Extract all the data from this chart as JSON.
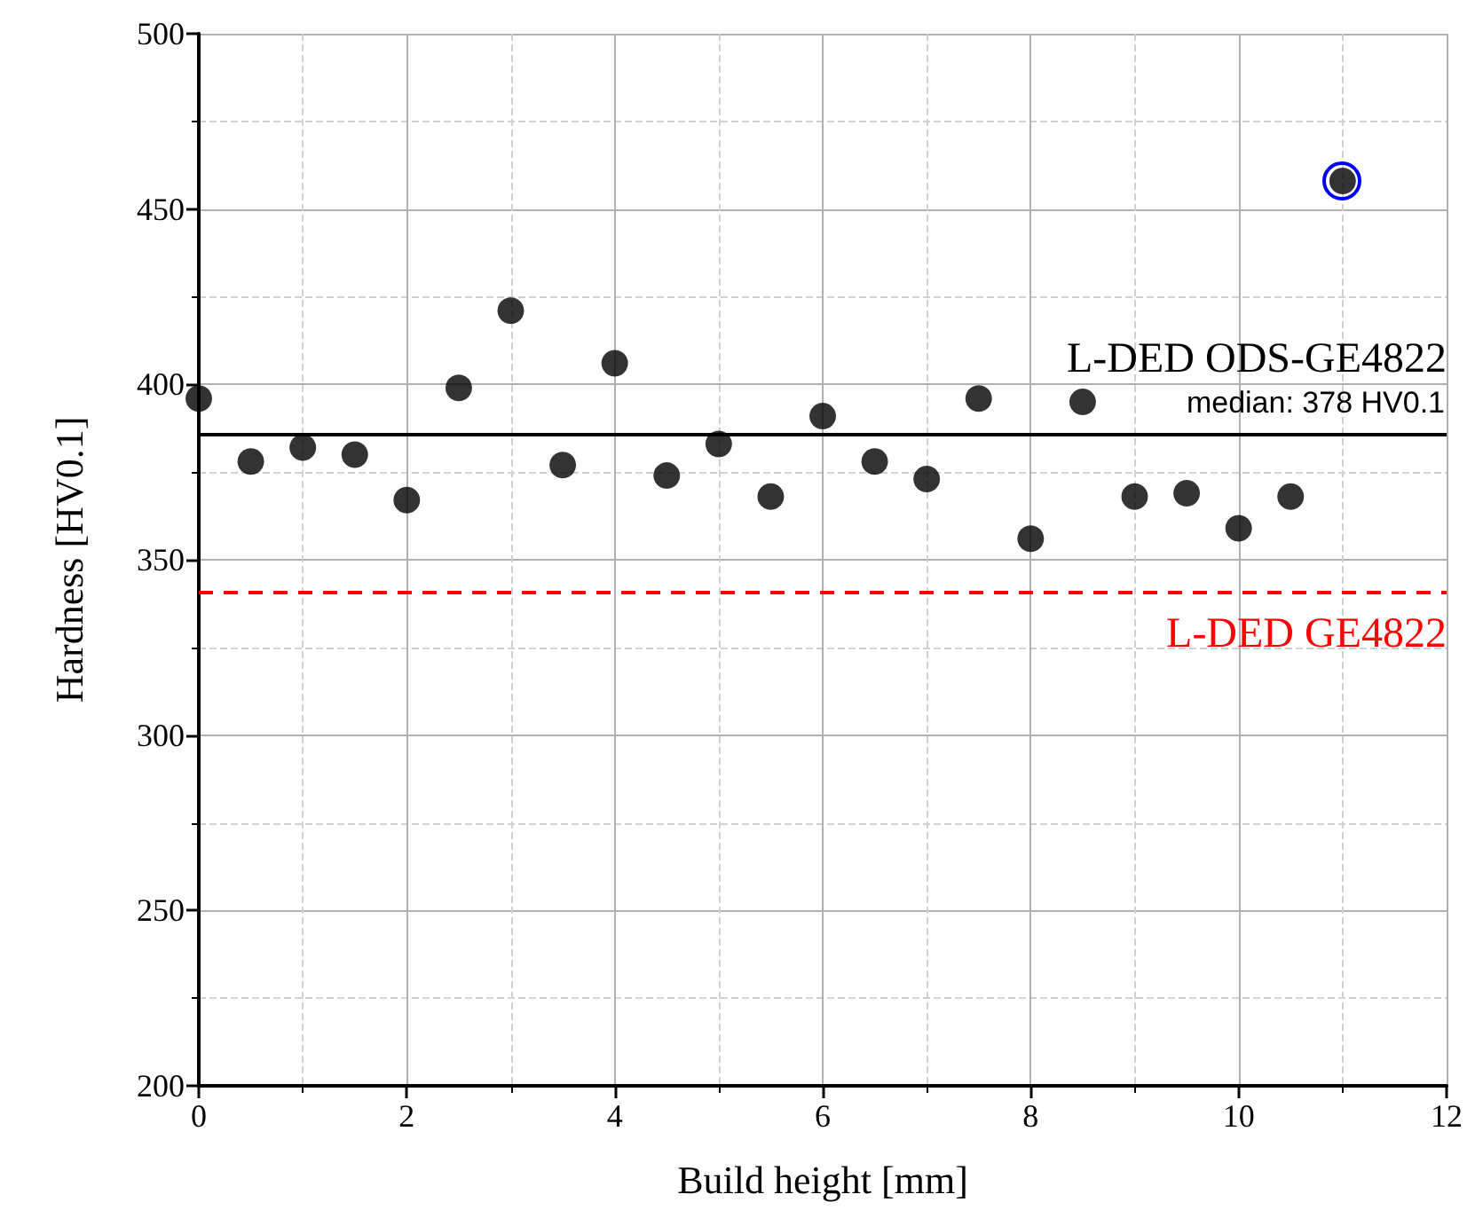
{
  "chart_data": {
    "type": "scatter",
    "x": [
      0,
      0.5,
      1,
      1.5,
      2,
      2.5,
      3,
      3.5,
      4,
      4.5,
      5,
      5.5,
      6,
      6.5,
      7,
      7.5,
      8,
      8.5,
      9,
      9.5,
      10,
      10.5,
      11
    ],
    "series": [
      {
        "color": "#000000",
        "values": [
          396,
          378,
          382,
          380,
          367,
          399,
          421,
          377,
          406,
          374,
          383,
          368,
          391,
          378,
          373,
          396,
          356,
          395,
          368,
          369,
          359,
          368,
          458
        ]
      }
    ],
    "xlabel": "Build height [mm]",
    "ylabel": "Hardness [HV0.1]",
    "xlim": [
      0,
      12
    ],
    "xticks": [
      0,
      2,
      4,
      6,
      8,
      10,
      12
    ],
    "ylim": [
      200,
      500
    ],
    "yticks": [
      200,
      250,
      300,
      350,
      400,
      450,
      500
    ],
    "ref_lines": [
      {
        "axis": "y",
        "value": 386,
        "label": "L-DED ODS-GE4822",
        "color": "#000000",
        "line_style": "solid"
      },
      {
        "axis": "y",
        "value": 341,
        "label": "L-DED GE4822",
        "color": "#ff0000",
        "line_style": "dashed"
      }
    ],
    "annotations": [
      "median: 378 HV0.1"
    ],
    "grid": true,
    "marker": "circle"
  }
}
